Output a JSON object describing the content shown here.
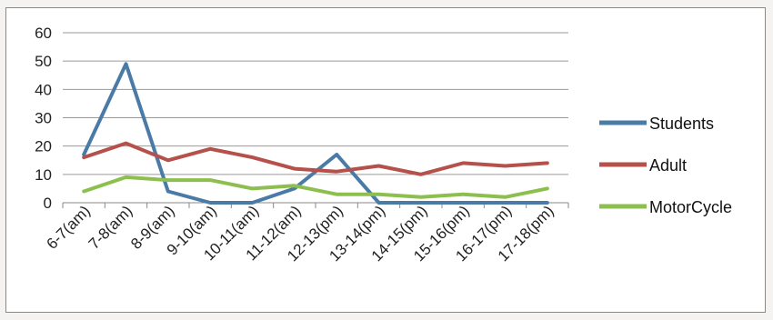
{
  "chart_data": {
    "type": "line",
    "categories": [
      "6-7(am)",
      "7-8(am)",
      "8-9(am)",
      "9-10(am)",
      "10-11(am)",
      "11-12(am)",
      "12-13(pm)",
      "13-14(pm)",
      "14-15(pm)",
      "15-16(pm)",
      "16-17(pm)",
      "17-18(pm)"
    ],
    "series": [
      {
        "name": "Students",
        "color": "#4a7ba7",
        "values": [
          17,
          49,
          4,
          0,
          0,
          5,
          17,
          0,
          0,
          0,
          0,
          0
        ]
      },
      {
        "name": "Adult",
        "color": "#b5504b",
        "values": [
          16,
          21,
          15,
          19,
          16,
          12,
          11,
          13,
          10,
          14,
          13,
          14
        ]
      },
      {
        "name": "MotorCycle",
        "color": "#8cbf4e",
        "values": [
          4,
          9,
          8,
          8,
          5,
          6,
          3,
          3,
          2,
          3,
          2,
          5
        ]
      }
    ],
    "ylim": [
      0,
      60
    ],
    "yticks": [
      "0",
      "10",
      "20",
      "30",
      "40",
      "50",
      "60"
    ],
    "grid": true,
    "legend": "right"
  }
}
